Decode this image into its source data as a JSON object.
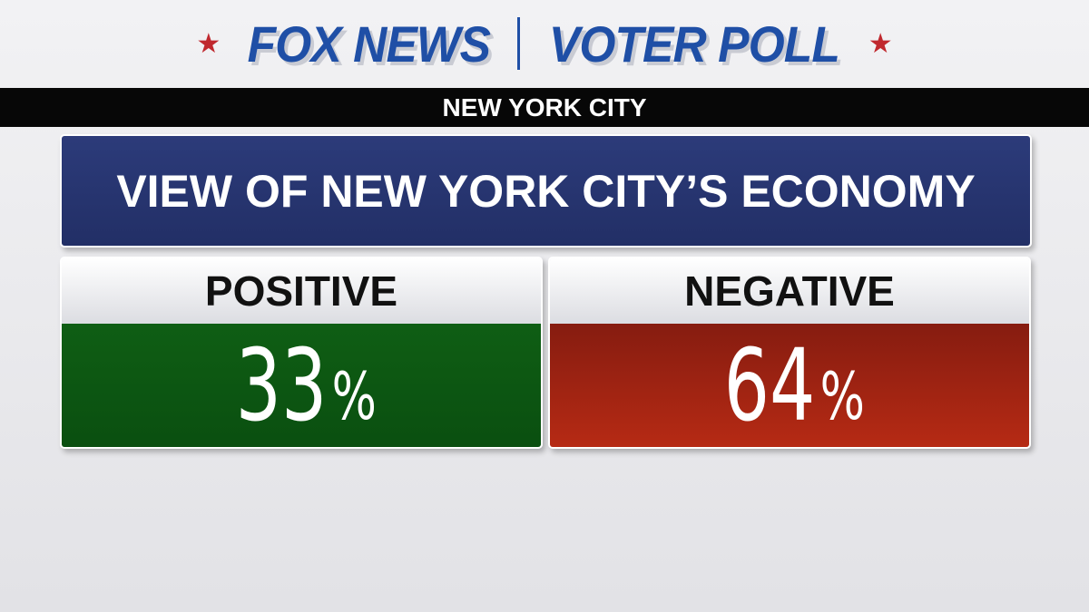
{
  "header": {
    "brand": "FOX NEWS",
    "product": "VOTER POLL",
    "location": "NEW YORK CITY"
  },
  "question": "VIEW OF NEW YORK CITY’S ECONOMY",
  "results": [
    {
      "label": "POSITIVE",
      "value": "33",
      "unit": "%"
    },
    {
      "label": "NEGATIVE",
      "value": "64",
      "unit": "%"
    }
  ]
}
